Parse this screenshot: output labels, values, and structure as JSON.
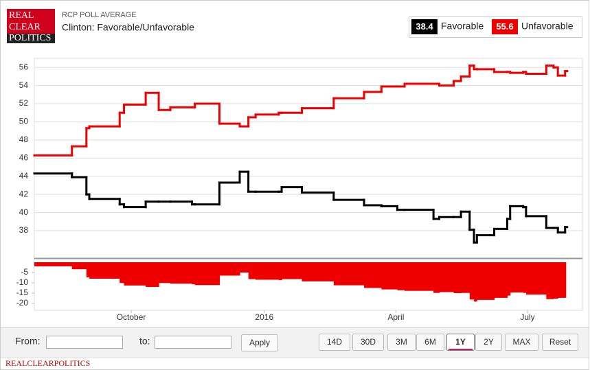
{
  "header": {
    "logo": [
      "REAL",
      "CLEAR",
      "POLITICS"
    ],
    "kicker": "RCP POLL AVERAGE",
    "title": "Clinton: Favorable/Unfavorable"
  },
  "chart_data": [
    {
      "type": "line",
      "x": [
        -67,
        -41,
        -31,
        -29,
        -8,
        -5,
        10,
        19,
        27,
        42,
        44,
        61,
        75,
        81,
        86,
        102,
        104,
        118,
        140,
        161,
        173,
        184,
        189,
        209,
        213,
        223,
        228,
        234,
        237,
        239,
        251,
        260,
        262,
        271,
        273,
        287,
        292,
        295,
        300
      ],
      "xlim": [
        -67,
        312
      ],
      "ylim": [
        35.05,
        57
      ],
      "yticks": [
        38,
        40,
        42,
        44,
        46,
        48,
        50,
        52,
        54,
        56
      ],
      "grid": true,
      "series": [
        {
          "name": "Favorable",
          "color": "#000000",
          "latest": 38.4,
          "values": [
            44.3,
            43.9,
            42.0,
            41.5,
            40.9,
            40.6,
            41.2,
            41.2,
            41.2,
            40.9,
            40.9,
            43.3,
            44.5,
            42.3,
            42.3,
            42.3,
            42.8,
            42.2,
            41.4,
            40.8,
            40.7,
            40.3,
            40.3,
            39.3,
            39.5,
            39.5,
            40.1,
            38.1,
            36.7,
            37.5,
            38.2,
            39.3,
            40.7,
            40.6,
            39.6,
            38.3,
            38.3,
            37.8,
            38.4
          ]
        },
        {
          "name": "Unfavorable",
          "color": "#ee0000",
          "latest": 55.6,
          "values": [
            46.3,
            47.3,
            49.3,
            49.5,
            51.0,
            51.9,
            53.2,
            51.3,
            51.6,
            51.6,
            52.0,
            49.8,
            49.5,
            50.5,
            50.8,
            51.0,
            51.0,
            51.5,
            52.6,
            53.3,
            53.9,
            53.9,
            54.2,
            54.2,
            54.0,
            54.5,
            55.0,
            56.2,
            55.8,
            55.8,
            55.5,
            55.5,
            55.4,
            55.5,
            55.3,
            56.2,
            56.0,
            55.1,
            55.6
          ]
        }
      ]
    },
    {
      "type": "area",
      "x": [
        -67,
        -41,
        -31,
        -29,
        -8,
        -5,
        10,
        19,
        27,
        42,
        44,
        61,
        75,
        81,
        86,
        102,
        104,
        118,
        140,
        161,
        173,
        184,
        189,
        209,
        213,
        223,
        228,
        234,
        237,
        239,
        251,
        260,
        262,
        271,
        273,
        287,
        292,
        295,
        300
      ],
      "xlim": [
        -67,
        312
      ],
      "xticks": [
        {
          "value": 0,
          "label": "October"
        },
        {
          "value": 92,
          "label": "2016"
        },
        {
          "value": 183,
          "label": "April"
        },
        {
          "value": 274,
          "label": "July"
        }
      ],
      "ylim": [
        -23.33,
        1.33
      ],
      "yticks": [
        -5,
        -10,
        -15,
        -20
      ],
      "grid": false,
      "series": [
        {
          "color": "#ee0000",
          "values": [
            -2.0,
            -3.4,
            -7.3,
            -8.0,
            -10.1,
            -11.3,
            -12.0,
            -10.1,
            -10.4,
            -10.7,
            -11.1,
            -6.5,
            -5.0,
            -8.2,
            -8.5,
            -8.7,
            -8.2,
            -9.3,
            -11.2,
            -12.5,
            -13.2,
            -13.6,
            -13.9,
            -14.9,
            -14.5,
            -15.0,
            -14.9,
            -18.1,
            -19.1,
            -18.3,
            -17.3,
            -16.2,
            -14.7,
            -14.9,
            -15.7,
            -17.9,
            -17.7,
            -17.3,
            -17.2
          ]
        }
      ]
    }
  ],
  "controls": {
    "from": "From:",
    "to": "to:",
    "apply": "Apply",
    "ranges": [
      "14D",
      "30D",
      "3M",
      "6M",
      "1Y",
      "2Y",
      "MAX",
      "Reset"
    ],
    "selected_index": 4
  },
  "footer": "REALCLEARPOLITICS"
}
